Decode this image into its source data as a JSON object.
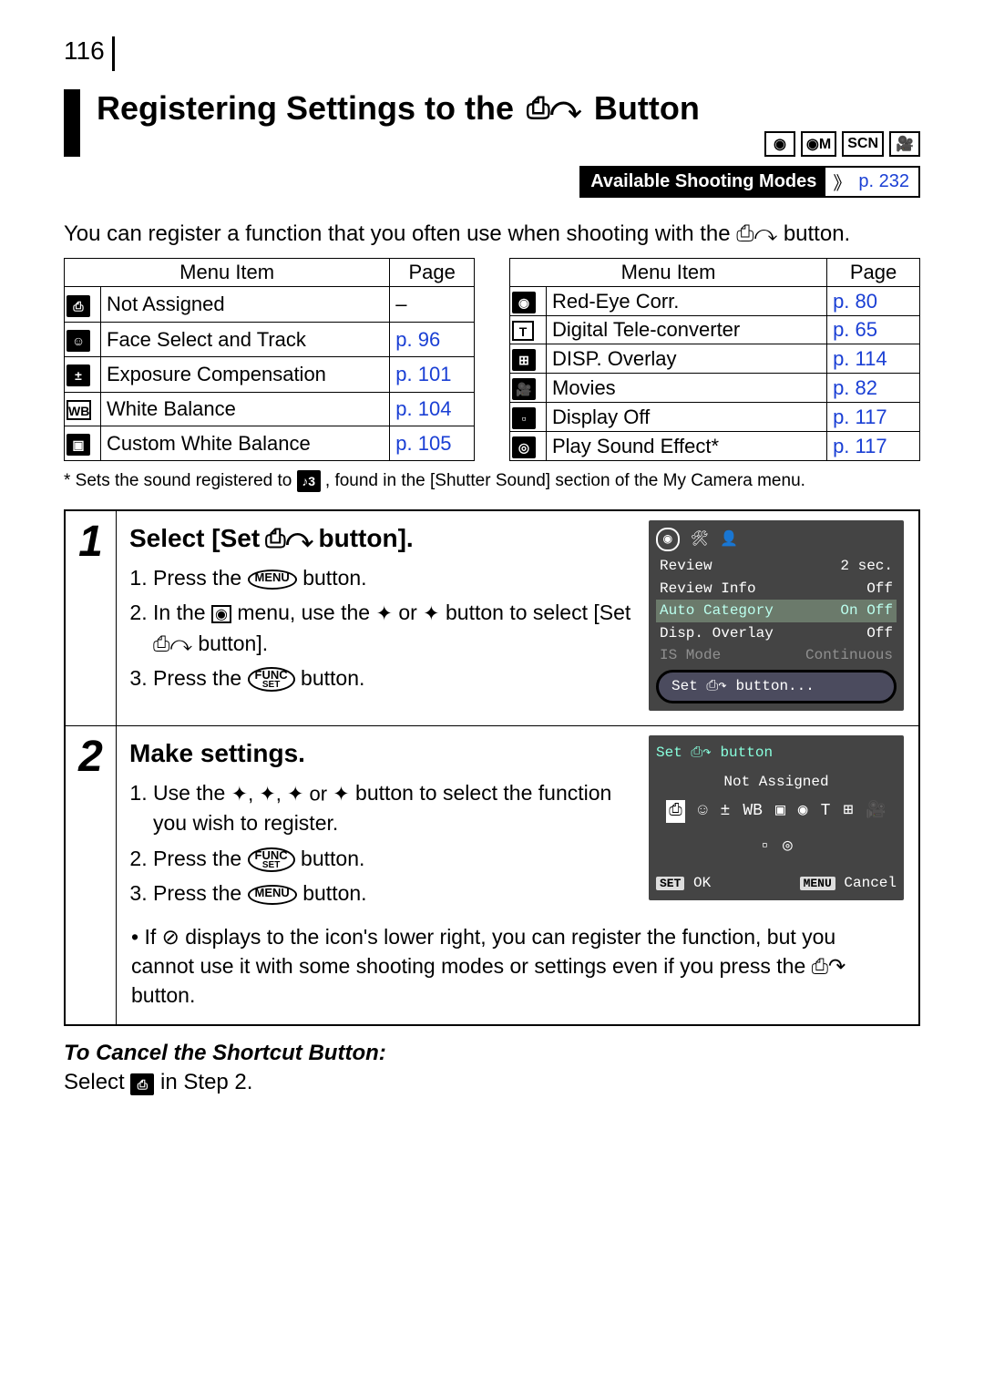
{
  "page_number": "116",
  "title_prefix": "Registering Settings to the ",
  "title_icon_glyph": "⎙↷",
  "title_suffix": " Button",
  "mode_icons": [
    "◉",
    "◉M",
    "SCN",
    "🎥"
  ],
  "avail_label": "Available Shooting Modes",
  "avail_page": "p. 232",
  "avail_link_color": "#1a3fd4",
  "intro1": "You can register a function that you often use when shooting with the ",
  "intro_icon": "⎙↷",
  "intro2": " button.",
  "table_headers": {
    "item": "Menu Item",
    "page": "Page"
  },
  "table_left": [
    {
      "icon_text": "⎙",
      "icon_style": "solid",
      "item": "Not Assigned",
      "page": "–",
      "link": false
    },
    {
      "icon_text": "☺",
      "icon_style": "solid",
      "item": "Face Select and Track",
      "page": "p. 96",
      "link": true
    },
    {
      "icon_text": "±",
      "icon_style": "solid",
      "item": "Exposure Compensation",
      "page": "p. 101",
      "link": true
    },
    {
      "icon_text": "WB",
      "icon_style": "outline",
      "item": "White Balance",
      "page": "p. 104",
      "link": true
    },
    {
      "icon_text": "▣",
      "icon_style": "solid",
      "item": "Custom White Balance",
      "page": "p. 105",
      "link": true
    }
  ],
  "table_right": [
    {
      "icon_text": "◉",
      "icon_style": "solid",
      "item": "Red-Eye Corr.",
      "page": "p. 80",
      "link": true
    },
    {
      "icon_text": "T",
      "icon_style": "outline",
      "item": "Digital Tele-converter",
      "page": "p. 65",
      "link": true
    },
    {
      "icon_text": "⊞",
      "icon_style": "solid",
      "item": "DISP. Overlay",
      "page": "p. 114",
      "link": true
    },
    {
      "icon_text": "🎥",
      "icon_style": "solid",
      "item": "Movies",
      "page": "p. 82",
      "link": true
    },
    {
      "icon_text": "▫",
      "icon_style": "solid",
      "item": "Display Off",
      "page": "p. 117",
      "link": true
    },
    {
      "icon_text": "◎",
      "icon_style": "solid",
      "item": "Play Sound Effect*",
      "page": "p. 117",
      "link": true
    }
  ],
  "footnote_prefix": "*  Sets the sound registered to ",
  "footnote_icon": "♪3",
  "footnote_suffix": ", found in the [Shutter Sound] section of the My Camera menu.",
  "steps": [
    {
      "num": "1",
      "heading_prefix": "Select [Set ",
      "heading_icon": "⎙↷",
      "heading_suffix": " button].",
      "lines": [
        {
          "pre": "Press the ",
          "btn": "MENU",
          "post": " button."
        },
        {
          "pre": "In the ",
          "sq": "◉",
          "mid": " menu, use the ",
          "a1": "✦",
          "mid2": " or ",
          "a2": "✦",
          "post": " button to select [Set ",
          "icon": "⎙↷",
          "tail": " button]."
        },
        {
          "pre": "Press the ",
          "btn": "FUNC SET",
          "post": " button."
        }
      ],
      "screen": {
        "rows": [
          {
            "k": "Review",
            "v": "2 sec."
          },
          {
            "k": "Review Info",
            "v": "Off"
          },
          {
            "k": "Auto Category",
            "v": "On  Off",
            "hl": true
          },
          {
            "k": "Disp. Overlay",
            "v": "Off"
          },
          {
            "k": "IS Mode",
            "v": "Continuous",
            "dim": true
          }
        ],
        "capsule": "Set ⎙↷ button..."
      }
    },
    {
      "num": "2",
      "heading": "Make settings.",
      "lines": [
        {
          "pre": "Use the ",
          "arrows": "✦, ✦, ✦ or ✦",
          "post": " button to select the function you wish to register."
        },
        {
          "pre": "Press the ",
          "btn": "FUNC SET",
          "post": " button."
        },
        {
          "pre": "Press the ",
          "btn": "MENU",
          "post": " button."
        }
      ],
      "note": "If ⊘ displays to the icon's lower right, you can register the function, but you cannot use it with some shooting modes or settings even if you press the ⎙↷ button.",
      "screen": {
        "title": "Set ⎙↷ button",
        "label": "Not Assigned",
        "icons": [
          "⎙",
          "☺",
          "±",
          "WB",
          "▣",
          "◉",
          "T",
          "⊞",
          "🎥",
          "▫",
          "◎"
        ],
        "ok": "OK",
        "cancel": "Cancel"
      }
    }
  ],
  "cancel_heading": "To Cancel the Shortcut Button:",
  "cancel_pre": "Select ",
  "cancel_icon": "⎙",
  "cancel_post": " in Step 2.",
  "link_color": "#1a3fd4"
}
